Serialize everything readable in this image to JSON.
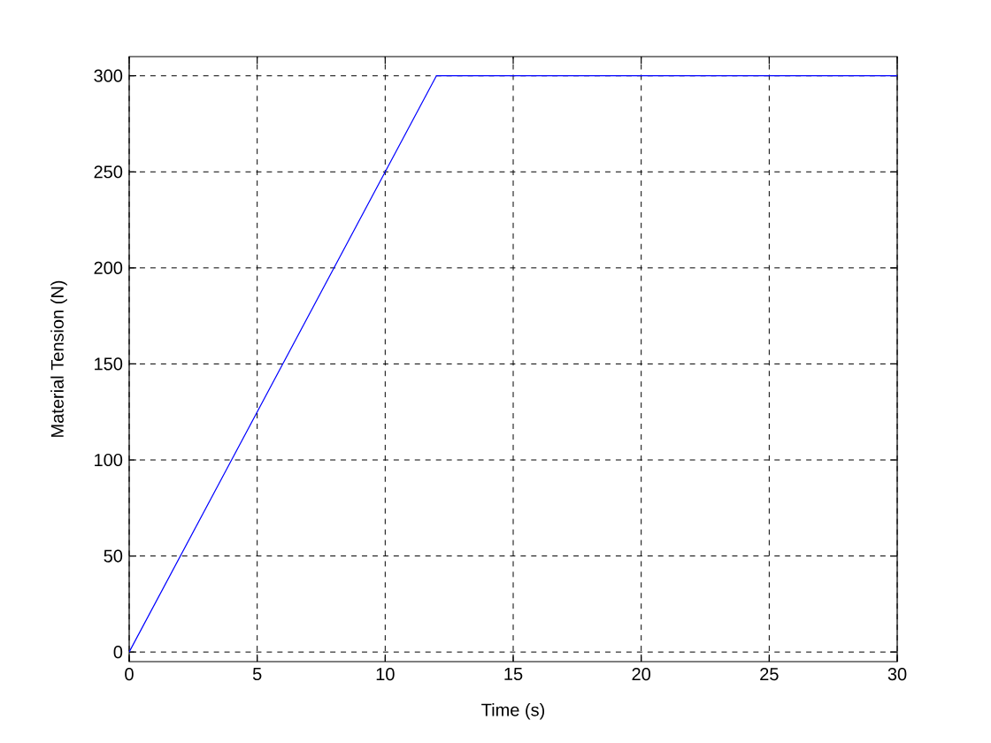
{
  "chart_data": {
    "type": "line",
    "xlabel": "Time (s)",
    "ylabel": "Material Tension (N)",
    "x": [
      0,
      12,
      30
    ],
    "series": [
      {
        "color": "#0000ff",
        "values": [
          0,
          300,
          300
        ]
      }
    ],
    "xlim": [
      0,
      30
    ],
    "ylim": [
      -5,
      310
    ],
    "xticks": [
      0,
      5,
      10,
      15,
      20,
      25,
      30
    ],
    "yticks": [
      0,
      50,
      100,
      150,
      200,
      250,
      300
    ],
    "grid": true,
    "marker": "none",
    "line_style": "solid"
  }
}
